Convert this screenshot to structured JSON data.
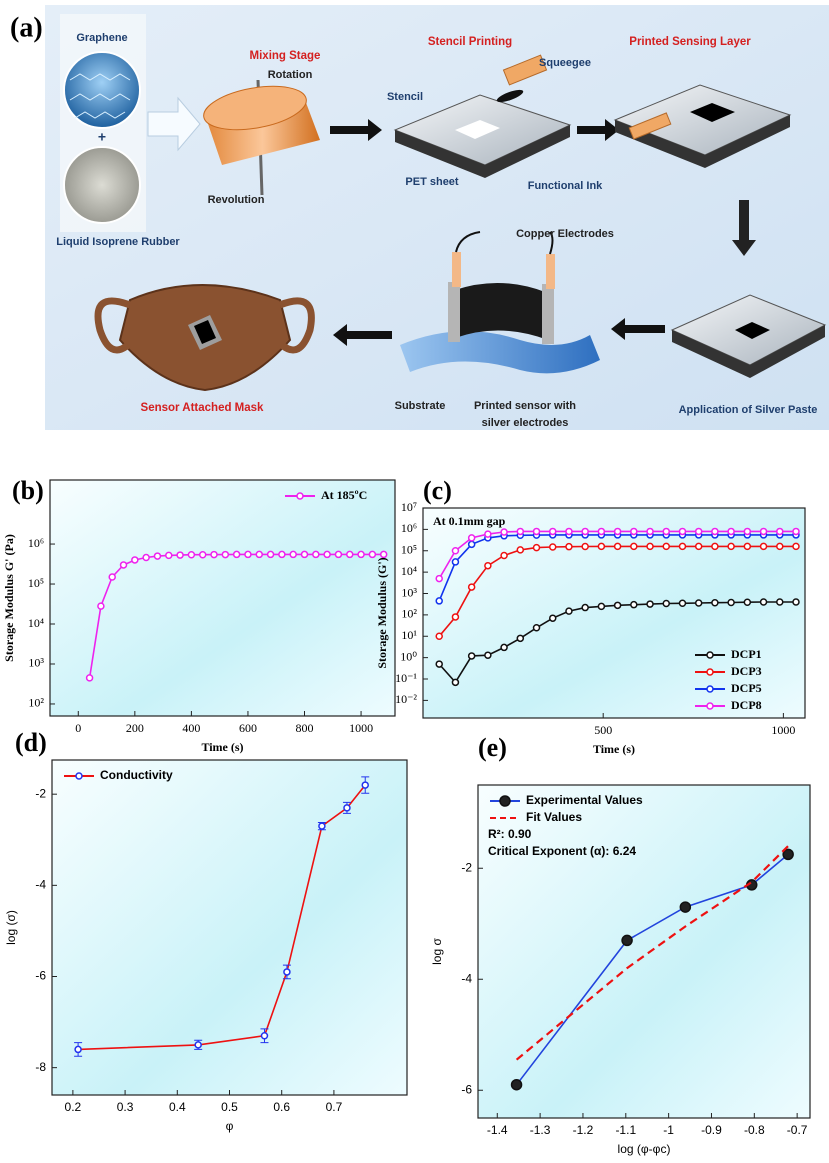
{
  "panel_a": {
    "label": "(a)",
    "texts": [
      "Graphene",
      "+",
      "Liquid Isoprene Rubber",
      "Mixing Stage",
      "Rotation",
      "Revolution",
      "Stencil Printing",
      "Squeegee",
      "Stencil",
      "PET sheet",
      "Functional Ink",
      "Printed Sensing Layer",
      "Copper Electrodes",
      "Substrate",
      "Printed sensor with",
      "silver electrodes",
      "Application of Silver Paste",
      "Sensor Attached Mask"
    ]
  },
  "chart_data": [
    {
      "type": "line",
      "title": "(b)",
      "xlabel": "Time (s)",
      "ylabel": "Storage Modulus G' (Pa)",
      "xlim": [
        -100,
        1120
      ],
      "ylim": [
        50,
        40000000
      ],
      "yscale": "log",
      "xticks": [
        0,
        200,
        400,
        600,
        800,
        1000
      ],
      "yticks": [
        {
          "value": 100,
          "label": "10²"
        },
        {
          "value": 1000,
          "label": "10³"
        },
        {
          "value": 10000,
          "label": "10⁴"
        },
        {
          "value": 100000,
          "label": "10⁵"
        },
        {
          "value": 1000000,
          "label": "10⁶"
        }
      ],
      "legend": "upper right",
      "series": [
        {
          "name": "At 185ºC",
          "color": "#ee22ee",
          "x": [
            40,
            80,
            120,
            160,
            200,
            240,
            280,
            320,
            360,
            400,
            440,
            480,
            520,
            560,
            600,
            640,
            680,
            720,
            760,
            800,
            840,
            880,
            920,
            960,
            1000,
            1040,
            1080
          ],
          "values": [
            450,
            28000,
            150000,
            300000,
            400000,
            460000,
            500000,
            520000,
            530000,
            540000,
            540000,
            545000,
            545000,
            550000,
            550000,
            550000,
            550000,
            550000,
            550000,
            550000,
            550000,
            550000,
            550000,
            550000,
            550000,
            550000,
            550000
          ]
        }
      ]
    },
    {
      "type": "line",
      "title": "(c)",
      "xlabel": "Time (s)",
      "ylabel": "Storage Modulus (G')",
      "annotations": [
        "At 0.1mm gap"
      ],
      "xlim": [
        0,
        1060
      ],
      "ylim": [
        0.0015,
        10000000
      ],
      "yscale": "log",
      "xticks": [
        500,
        1000
      ],
      "yticks": [
        {
          "value": 0.01,
          "label": "10⁻²"
        },
        {
          "value": 0.1,
          "label": "10⁻¹"
        },
        {
          "value": 1,
          "label": "10⁰"
        },
        {
          "value": 10,
          "label": "10¹"
        },
        {
          "value": 100,
          "label": "10²"
        },
        {
          "value": 1000,
          "label": "10³"
        },
        {
          "value": 10000,
          "label": "10⁴"
        },
        {
          "value": 100000,
          "label": "10⁵"
        },
        {
          "value": 1000000,
          "label": "10⁶"
        },
        {
          "value": 10000000,
          "label": "10⁷"
        }
      ],
      "legend": "lower right",
      "series": [
        {
          "name": "DCP1",
          "color": "#111111",
          "x": [
            45,
            90,
            135,
            180,
            225,
            270,
            315,
            360,
            405,
            450,
            495,
            540,
            585,
            630,
            675,
            720,
            765,
            810,
            855,
            900,
            945,
            990,
            1035
          ],
          "values": [
            0.5,
            0.07,
            1.2,
            1.3,
            3,
            8,
            25,
            70,
            150,
            220,
            250,
            280,
            300,
            320,
            340,
            350,
            360,
            370,
            380,
            390,
            400,
            400,
            400
          ]
        },
        {
          "name": "DCP3",
          "color": "#ee1111",
          "x": [
            45,
            90,
            135,
            180,
            225,
            270,
            315,
            360,
            405,
            450,
            495,
            540,
            585,
            630,
            675,
            720,
            765,
            810,
            855,
            900,
            945,
            990,
            1035
          ],
          "values": [
            10,
            80,
            2000,
            20000,
            60000,
            110000,
            140000,
            150000,
            155000,
            158000,
            160000,
            160000,
            160000,
            160000,
            160000,
            160000,
            160000,
            160000,
            160000,
            160000,
            160000,
            160000,
            160000
          ]
        },
        {
          "name": "DCP5",
          "color": "#1133ee",
          "x": [
            45,
            90,
            135,
            180,
            225,
            270,
            315,
            360,
            405,
            450,
            495,
            540,
            585,
            630,
            675,
            720,
            765,
            810,
            855,
            900,
            945,
            990,
            1035
          ],
          "values": [
            450,
            30000,
            200000,
            400000,
            500000,
            530000,
            540000,
            550000,
            550000,
            550000,
            550000,
            550000,
            550000,
            550000,
            550000,
            550000,
            550000,
            550000,
            550000,
            550000,
            550000,
            550000,
            550000
          ]
        },
        {
          "name": "DCP8",
          "color": "#ee22ee",
          "x": [
            45,
            90,
            135,
            180,
            225,
            270,
            315,
            360,
            405,
            450,
            495,
            540,
            585,
            630,
            675,
            720,
            765,
            810,
            855,
            900,
            945,
            990,
            1035
          ],
          "values": [
            5000,
            100000,
            400000,
            600000,
            750000,
            800000,
            800000,
            800000,
            800000,
            800000,
            800000,
            800000,
            800000,
            800000,
            800000,
            800000,
            800000,
            800000,
            800000,
            800000,
            800000,
            800000,
            800000
          ]
        }
      ]
    },
    {
      "type": "line",
      "title": "(d)",
      "xlabel": "φ",
      "ylabel": "log (σ)",
      "xlim": [
        0.16,
        0.84
      ],
      "ylim": [
        -8.6,
        -1.25
      ],
      "xticks": [
        0.2,
        0.3,
        0.4,
        0.5,
        0.6,
        0.7
      ],
      "yticks": [
        -8,
        -6,
        -4,
        -2
      ],
      "legend": "upper left",
      "series": [
        {
          "name": "Conductivity",
          "color": "#ee1111",
          "marker_color": "#2233ee",
          "x": [
            0.21,
            0.44,
            0.567,
            0.61,
            0.677,
            0.725,
            0.76
          ],
          "values": [
            -7.6,
            -7.5,
            -7.3,
            -5.9,
            -2.7,
            -2.3,
            -1.8
          ],
          "errors": [
            0.15,
            0.1,
            0.15,
            0.15,
            0.08,
            0.12,
            0.18
          ]
        }
      ]
    },
    {
      "type": "line",
      "title": "(e)",
      "xlabel": "log (φ-φc)",
      "ylabel": "log σ",
      "annotations": [
        "R²: 0.90",
        "Critical Exponent (α): 6.24"
      ],
      "xlim": [
        -1.445,
        -0.67
      ],
      "ylim": [
        -6.5,
        -0.5
      ],
      "xticks": [
        -1.4,
        -1.3,
        -1.2,
        -1.1,
        -1,
        -0.9,
        -0.8,
        -0.7
      ],
      "yticks": [
        -6,
        -4,
        -2
      ],
      "legend": "upper left",
      "series": [
        {
          "name": "Experimental Values",
          "color": "#2244dd",
          "marker_color": "#111111",
          "x": [
            -1.355,
            -1.097,
            -0.961,
            -0.806,
            -0.721
          ],
          "values": [
            -5.9,
            -3.3,
            -2.7,
            -2.3,
            -1.75
          ]
        },
        {
          "name": "Fit Values",
          "color": "#ee1111",
          "dash": true,
          "x": [
            -1.355,
            -1.097,
            -0.961,
            -0.806,
            -0.721
          ],
          "values": [
            -5.45,
            -3.8,
            -3.05,
            -2.25,
            -1.6
          ]
        }
      ]
    }
  ]
}
